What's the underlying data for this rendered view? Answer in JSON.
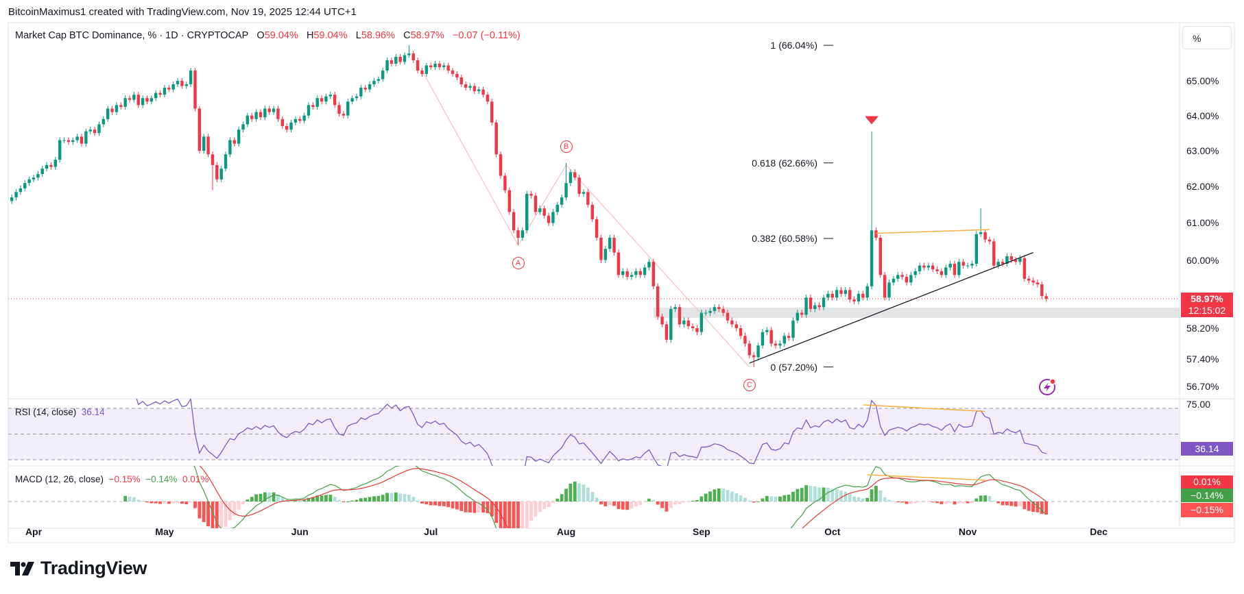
{
  "credit": "BitcoinMaximus1 created with TradingView.com, Nov 19, 2025 12:44 UTC+1",
  "legend": {
    "symbol": "Market Cap BTC Dominance, % · 1D · CRYPTOCAP",
    "o_label": "O",
    "o": "59.04%",
    "h_label": "H",
    "h": "59.04%",
    "l_label": "L",
    "l": "58.96%",
    "c_label": "C",
    "c": "58.97%",
    "change": "−0.07 (−0.11%)"
  },
  "scale_button": "%",
  "price_axis": {
    "ticks": [
      "65.00%",
      "64.00%",
      "63.00%",
      "62.00%",
      "61.00%",
      "60.00%",
      "58.20%",
      "57.40%",
      "56.70%"
    ],
    "current_price": "58.97%",
    "countdown": "12:15:02"
  },
  "rsi": {
    "title": "RSI (14, close)",
    "value": "36.14",
    "axis_label": "75.00",
    "upper": 70,
    "middle": 50,
    "lower": 30
  },
  "macd": {
    "title": "MACD (12, 26, close)",
    "histogram": "−0.15%",
    "macd": "−0.14%",
    "signal": "0.01%"
  },
  "logo": "TradingView",
  "colors": {
    "up": "#089981",
    "down": "#f23645",
    "rsi": "#7e57c2",
    "macd_line": "#43a047",
    "signal_line": "#e53935",
    "hist_up": "#4caf50",
    "hist_up_light": "#b2dfdb",
    "hist_down": "#ff5252",
    "hist_down_light": "#ffcdd2",
    "annotation_orange": "#f5b041",
    "trendline": "#131722",
    "wave": "#f23645",
    "alert_icon": "#9c27b0"
  },
  "chart_data": {
    "type": "candlestick",
    "scale": "log",
    "grid": false,
    "x_ticks": [
      {
        "label": "Apr",
        "date": "2025-04-01"
      },
      {
        "label": "May",
        "date": "2025-05-01"
      },
      {
        "label": "Jun",
        "date": "2025-06-01"
      },
      {
        "label": "Jul",
        "date": "2025-07-01"
      },
      {
        "label": "Aug",
        "date": "2025-08-01"
      },
      {
        "label": "Sep",
        "date": "2025-09-01"
      },
      {
        "label": "Oct",
        "date": "2025-10-01"
      },
      {
        "label": "Nov",
        "date": "2025-11-01"
      },
      {
        "label": "Dec",
        "date": "2025-12-01"
      }
    ],
    "daily_closes": [
      {
        "month": "2025-03",
        "first_day": 27,
        "closes": [
          61.7,
          61.85,
          61.95,
          62.1,
          62.2
        ]
      },
      {
        "month": "2025-04",
        "first_day": 1,
        "closes": [
          62.25,
          62.35,
          62.5,
          62.6,
          62.55,
          62.75,
          63.3,
          63.3,
          63.25,
          63.3,
          63.4,
          63.2,
          63.55,
          63.6,
          63.5,
          63.75,
          63.9,
          64.2,
          64.1,
          64.3,
          64.25,
          64.5,
          64.45,
          64.6,
          64.3,
          64.5,
          64.4,
          64.5,
          64.65,
          64.6
        ]
      },
      {
        "month": "2025-05",
        "first_day": 1,
        "closes": [
          64.8,
          64.75,
          64.9,
          65.0,
          64.85,
          64.9,
          65.3,
          64.2,
          63.0,
          63.4,
          62.9,
          62.6,
          62.2,
          62.5,
          62.9,
          63.3,
          63.2,
          63.6,
          63.75,
          64.0,
          63.9,
          64.1,
          63.95,
          64.2,
          64.1,
          64.2,
          63.9,
          63.7,
          63.6,
          63.8,
          63.9
        ]
      },
      {
        "month": "2025-06",
        "first_day": 1,
        "closes": [
          63.85,
          64.0,
          64.3,
          64.25,
          64.5,
          64.4,
          64.55,
          64.6,
          64.3,
          64.05,
          64.0,
          64.4,
          64.5,
          64.55,
          64.8,
          64.75,
          64.9,
          65.0,
          65.05,
          65.3,
          65.6,
          65.5,
          65.7,
          65.55,
          65.75,
          65.8,
          65.6,
          65.3,
          65.2,
          65.45
        ]
      },
      {
        "month": "2025-07",
        "first_day": 1,
        "closes": [
          65.4,
          65.5,
          65.4,
          65.45,
          65.3,
          65.2,
          65.1,
          64.9,
          64.8,
          64.85,
          64.7,
          64.75,
          64.6,
          64.4,
          63.8,
          62.9,
          62.3,
          61.9,
          61.3,
          60.8,
          60.6,
          60.8,
          61.8,
          61.75,
          61.3,
          61.4,
          61.2,
          61.0,
          61.3,
          61.5,
          61.7
        ]
      },
      {
        "month": "2025-08",
        "first_day": 1,
        "closes": [
          62.1,
          62.4,
          62.25,
          61.8,
          61.85,
          61.5,
          61.1,
          60.6,
          60.0,
          60.3,
          60.6,
          60.2,
          59.6,
          59.7,
          59.55,
          59.6,
          59.7,
          59.6,
          59.8,
          59.95,
          59.3,
          58.5,
          58.3,
          57.9,
          58.7,
          58.75,
          58.3,
          58.4,
          58.25,
          58.2,
          58.1
        ]
      },
      {
        "month": "2025-09",
        "first_day": 1,
        "closes": [
          58.6,
          58.6,
          58.65,
          58.75,
          58.7,
          58.6,
          58.4,
          58.3,
          58.2,
          58.0,
          57.8,
          57.5,
          57.45,
          57.75,
          58.1,
          58.15,
          57.8,
          57.75,
          57.8,
          58.0,
          57.95,
          58.4,
          58.6,
          58.55,
          59.0,
          58.7,
          58.8,
          58.75,
          59.0,
          59.1
        ]
      },
      {
        "month": "2025-10",
        "first_day": 1,
        "closes": [
          59.0,
          59.2,
          59.1,
          59.2,
          58.95,
          58.9,
          59.1,
          59.0,
          59.3,
          60.8,
          60.6,
          59.6,
          59.0,
          59.4,
          59.5,
          59.6,
          59.55,
          59.4,
          59.6,
          59.7,
          59.85,
          59.8,
          59.85,
          59.75,
          59.7,
          59.6,
          59.8,
          59.9,
          59.6,
          59.95,
          59.85
        ]
      },
      {
        "month": "2025-11",
        "first_day": 1,
        "closes": [
          59.85,
          59.9,
          60.7,
          60.75,
          60.55,
          60.5,
          59.85,
          59.95,
          59.9,
          60.1,
          60.0,
          59.95,
          60.05,
          59.5,
          59.45,
          59.4,
          59.35,
          59.04,
          58.97
        ]
      }
    ],
    "wick_highs": {
      "2025-06-26": 66.04,
      "2025-08-01": 62.66,
      "2025-10-10": 63.55,
      "2025-11-04": 61.4
    },
    "wick_lows": {
      "2025-05-12": 61.9,
      "2025-07-21": 60.4,
      "2025-09-13": 57.2
    },
    "last_price": 58.97,
    "fib_levels": [
      {
        "label": "1 (66.04%)",
        "price": 66.04
      },
      {
        "label": "0.618 (62.66%)",
        "price": 62.66
      },
      {
        "label": "0.382 (60.58%)",
        "price": 60.58
      },
      {
        "label": "0 (57.20%)",
        "price": 57.2
      }
    ],
    "wave_path": [
      {
        "date": "2025-06-29",
        "price": 65.3
      },
      {
        "date": "2025-07-21",
        "price": 60.4
      },
      {
        "date": "2025-08-01",
        "price": 62.6
      },
      {
        "date": "2025-09-12",
        "price": 57.2
      }
    ],
    "wave_labels": [
      {
        "text": "A",
        "date": "2025-07-21",
        "price": 60.4,
        "pos": "below"
      },
      {
        "text": "B",
        "date": "2025-08-01",
        "price": 62.66,
        "pos": "above"
      },
      {
        "text": "C",
        "date": "2025-09-12",
        "price": 57.2,
        "pos": "below"
      }
    ],
    "trendline": [
      {
        "date": "2025-09-12",
        "price": 57.3
      },
      {
        "date": "2025-11-16",
        "price": 60.2
      }
    ],
    "resistance_line": [
      {
        "date": "2025-10-11",
        "price": 60.72
      },
      {
        "date": "2025-11-06",
        "price": 60.82
      }
    ],
    "support_zone": {
      "from_date": "2025-08-21",
      "low": 58.47,
      "high": 58.74
    },
    "alert_marker": {
      "date": "2025-10-10",
      "price": 63.75
    },
    "rsi_divergence": [
      {
        "date": "2025-10-08",
        "value": 72.7
      },
      {
        "date": "2025-11-05",
        "value": 67.6
      }
    ],
    "macd_divergence": [
      {
        "date": "2025-10-09",
        "value": 0.3
      },
      {
        "date": "2025-11-05",
        "value": 0.24
      }
    ]
  }
}
